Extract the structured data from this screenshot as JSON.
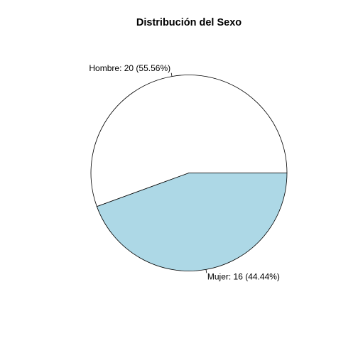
{
  "chart_data": {
    "type": "pie",
    "title": "Distribución del Sexo",
    "slices": [
      {
        "label": "Hombre: 20 (55.56%)",
        "category": "Hombre",
        "value": 20,
        "percent": 55.56,
        "color": "#ffffff"
      },
      {
        "label": "Mujer: 16 (44.44%)",
        "category": "Mujer",
        "value": 16,
        "percent": 44.44,
        "color": "#add8e6"
      }
    ],
    "start_angle_deg": 0,
    "direction": "counterclockwise",
    "border_color": "#000000",
    "legend": "none"
  }
}
